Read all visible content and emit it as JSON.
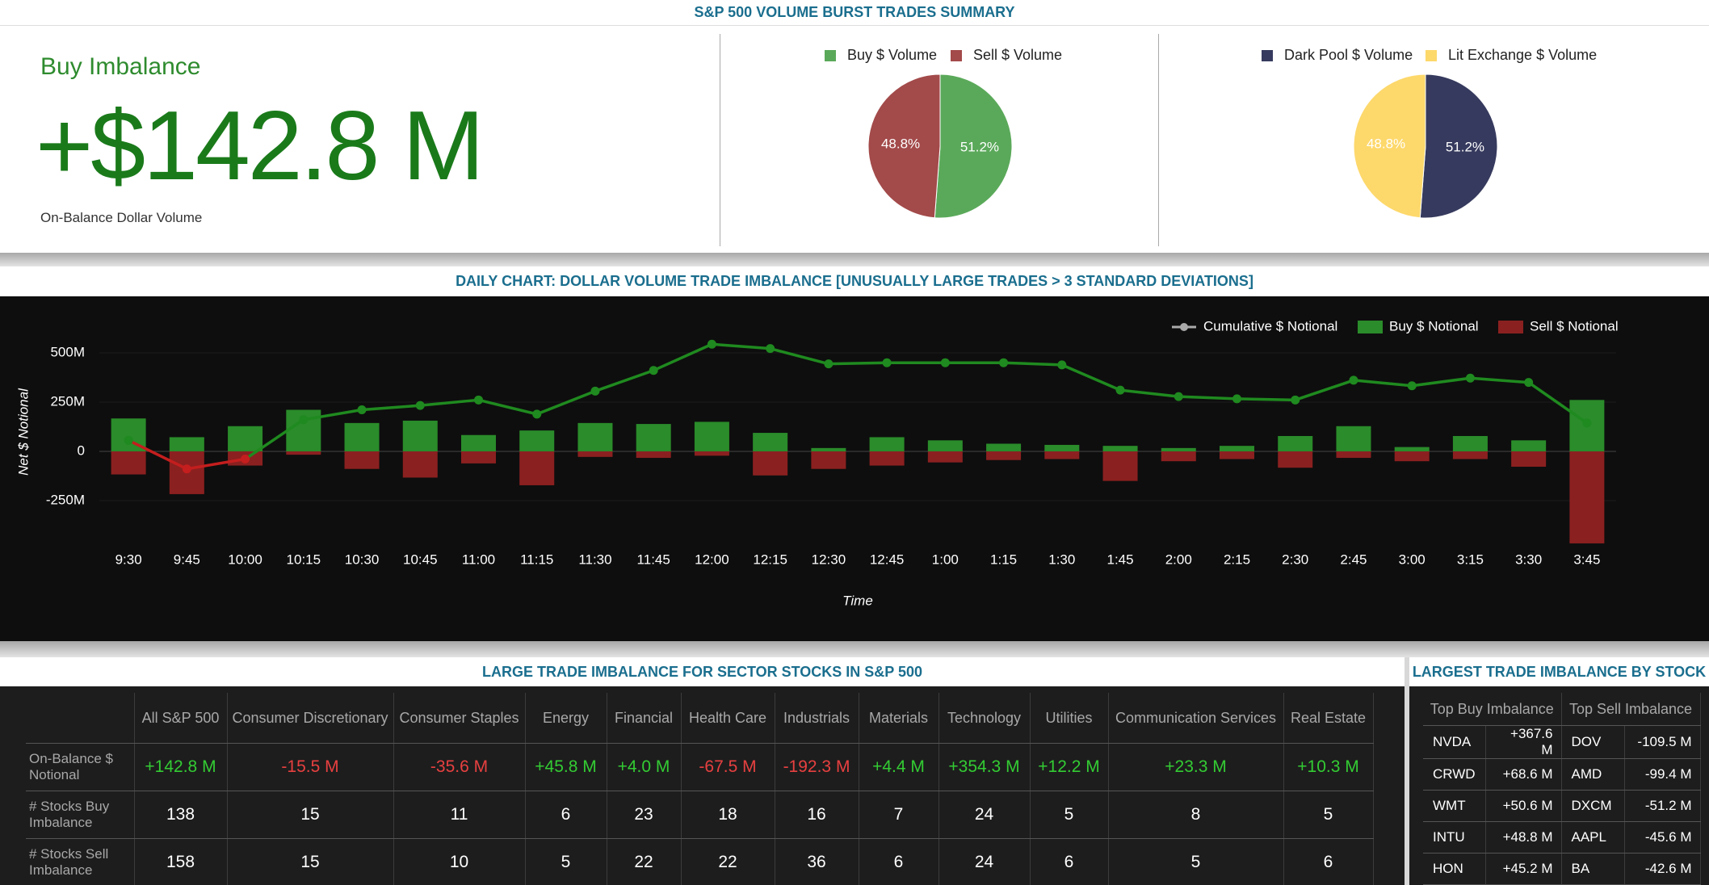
{
  "header": {
    "title": "S&P 500 VOLUME BURST TRADES SUMMARY"
  },
  "kpi": {
    "label": "Buy Imbalance",
    "value": "+$142.8 M",
    "caption": "On-Balance Dollar Volume"
  },
  "chart_data": [
    {
      "type": "pie",
      "categories": [
        "Buy $ Volume",
        "Sell $ Volume"
      ],
      "values": [
        51.2,
        48.8
      ],
      "value_labels": [
        "51.2%",
        "48.8%"
      ],
      "colors": [
        "#5aa95a",
        "#a34a4a"
      ]
    },
    {
      "type": "pie",
      "categories": [
        "Dark Pool $ Volume",
        "Lit Exchange $ Volume"
      ],
      "values": [
        51.2,
        48.8
      ],
      "value_labels": [
        "51.2%",
        "48.8%"
      ],
      "colors": [
        "#363a5e",
        "#fdd86b"
      ]
    },
    {
      "type": "bar",
      "title": "DAILY CHART: DOLLAR VOLUME TRADE IMBALANCE [UNUSUALLY LARGE TRADES > 3 STANDARD DEVIATIONS]",
      "x_label": "Time",
      "y_label": "Net $ Notional",
      "categories": [
        "9:30",
        "9:45",
        "10:00",
        "10:15",
        "10:30",
        "10:45",
        "11:00",
        "11:15",
        "11:30",
        "11:45",
        "12:00",
        "12:15",
        "12:30",
        "12:45",
        "1:00",
        "1:15",
        "1:30",
        "1:45",
        "2:00",
        "2:15",
        "2:30",
        "2:45",
        "3:00",
        "3:15",
        "3:30",
        "3:45"
      ],
      "series": [
        {
          "name": "Cumulative $ Notional",
          "type": "line",
          "color": "#1f8a1f",
          "negative_color": "#c41e1e",
          "legend_color": "#aaaaaa",
          "values": [
            56,
            -89,
            -39,
            161,
            211,
            233,
            261,
            189,
            306,
            411,
            544,
            522,
            444,
            450,
            450,
            450,
            439,
            311,
            278,
            267,
            261,
            361,
            333,
            372,
            350,
            144
          ]
        },
        {
          "name": "Buy $ Notional",
          "type": "bar",
          "color": "#2a8c2a",
          "values": [
            167,
            72,
            128,
            211,
            144,
            156,
            83,
            106,
            144,
            139,
            150,
            94,
            17,
            72,
            56,
            39,
            33,
            28,
            17,
            28,
            78,
            128,
            22,
            78,
            56,
            261
          ]
        },
        {
          "name": "Sell $ Notional",
          "type": "bar",
          "color": "#8b2020",
          "values": [
            -117,
            -217,
            -72,
            -17,
            -89,
            -133,
            -61,
            -172,
            -28,
            -33,
            -22,
            -122,
            -89,
            -72,
            -56,
            -44,
            -39,
            -150,
            -50,
            -39,
            -83,
            -33,
            -50,
            -39,
            -78,
            -467
          ]
        }
      ],
      "ylim": [
        -500,
        700
      ],
      "yticks": [
        {
          "value": -250,
          "label": "-250M"
        },
        0,
        {
          "value": 250,
          "label": "250M"
        },
        {
          "value": 500,
          "label": "500M"
        }
      ],
      "grid": true,
      "legend": "top-right"
    }
  ],
  "sector_table": {
    "title": "LARGE TRADE IMBALANCE FOR SECTOR STOCKS IN S&P 500",
    "columns": [
      "All S&P 500",
      "Consumer Discretionary",
      "Consumer Staples",
      "Energy",
      "Financial",
      "Health Care",
      "Industrials",
      "Materials",
      "Technology",
      "Utilities",
      "Communication Services",
      "Real Estate"
    ],
    "rows": [
      {
        "label": "On-Balance $ Notional",
        "values": [
          "+142.8 M",
          "-15.5 M",
          "-35.6 M",
          "+45.8 M",
          "+4.0 M",
          "-67.5 M",
          "-192.3 M",
          "+4.4 M",
          "+354.3 M",
          "+12.2 M",
          "+23.3 M",
          "+10.3 M"
        ]
      },
      {
        "label": "# Stocks Buy Imbalance",
        "values": [
          "138",
          "15",
          "11",
          "6",
          "23",
          "18",
          "16",
          "7",
          "24",
          "5",
          "8",
          "5"
        ]
      },
      {
        "label": "# Stocks Sell Imbalance",
        "values": [
          "158",
          "15",
          "10",
          "5",
          "22",
          "22",
          "36",
          "6",
          "24",
          "6",
          "5",
          "6"
        ]
      }
    ]
  },
  "stock_table": {
    "title": "LARGEST TRADE IMBALANCE BY STOCK",
    "columns": [
      "Top Buy Imbalance",
      "Top Sell Imbalance"
    ],
    "rows": [
      [
        "NVDA",
        "+367.6 M",
        "DOV",
        "-109.5 M"
      ],
      [
        "CRWD",
        "+68.6 M",
        "AMD",
        "-99.4 M"
      ],
      [
        "WMT",
        "+50.6 M",
        "DXCM",
        "-51.2 M"
      ],
      [
        "INTU",
        "+48.8 M",
        "AAPL",
        "-45.6 M"
      ],
      [
        "HON",
        "+45.2 M",
        "BA",
        "-42.6 M"
      ]
    ]
  }
}
